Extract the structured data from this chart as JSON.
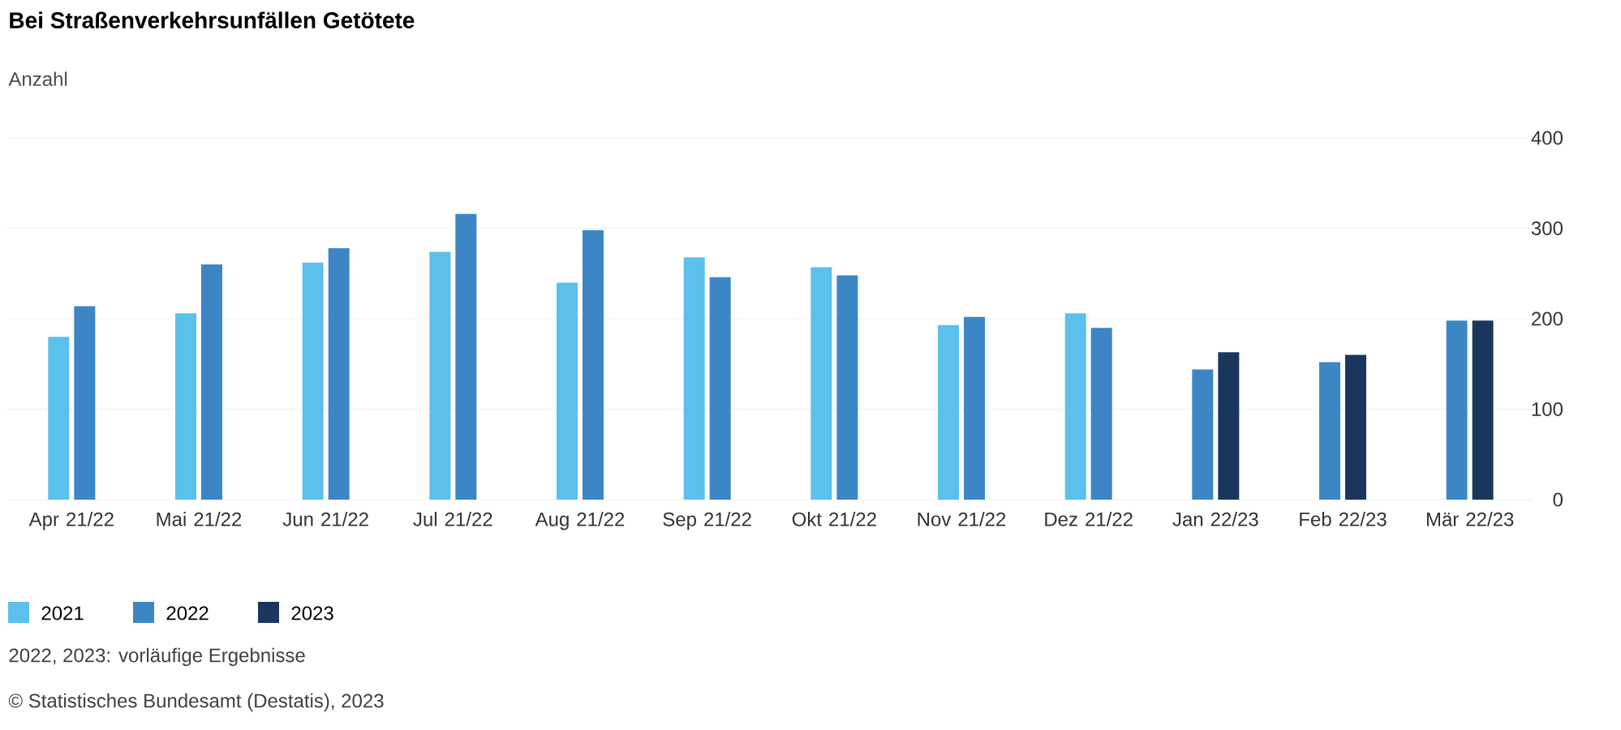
{
  "chart_data": {
    "type": "bar",
    "title": "Bei Straßenverkehrsunfällen Getötete",
    "subtitle": "Anzahl",
    "categories": [
      "Apr 21/22",
      "Mai 21/22",
      "Jun 21/22",
      "Jul 21/22",
      "Aug 21/22",
      "Sep 21/22",
      "Okt 21/22",
      "Nov 21/22",
      "Dez 21/22",
      "Jan 22/23",
      "Feb 22/23",
      "Mär 22/23"
    ],
    "series": [
      {
        "name": "2021",
        "color": "#5bc0eb",
        "values": [
          180,
          206,
          262,
          274,
          240,
          268,
          257,
          193,
          206,
          null,
          null,
          null
        ]
      },
      {
        "name": "2022",
        "color": "#3c86c6",
        "values": [
          214,
          260,
          278,
          316,
          298,
          246,
          248,
          202,
          190,
          144,
          152,
          198
        ]
      },
      {
        "name": "2023",
        "color": "#1b365d",
        "values": [
          null,
          null,
          null,
          null,
          null,
          null,
          null,
          null,
          null,
          163,
          160,
          198
        ]
      }
    ],
    "ylim": [
      0,
      400
    ],
    "yticks": [
      0,
      100,
      200,
      300,
      400
    ],
    "grid": "y",
    "legend": "bottom left",
    "annotations": [
      "2022, 2023: vorläufige Ergebnisse",
      "© Statistisches Bundesamt (Destatis), 2023"
    ]
  }
}
